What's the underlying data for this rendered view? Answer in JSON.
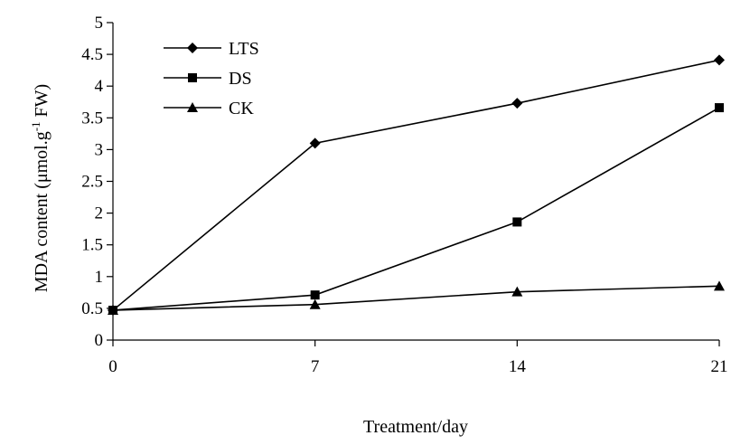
{
  "chart_data": {
    "type": "line",
    "xlabel": "Treatment/day",
    "ylabel": {
      "prefix": "MDA content (μmol.g",
      "superscript": "-1",
      "suffix": " FW)"
    },
    "x": [
      0,
      7,
      14,
      21
    ],
    "xlim": [
      0,
      21
    ],
    "ylim": [
      0,
      5
    ],
    "yticks": [
      "0",
      "0.5",
      "1",
      "1.5",
      "2",
      "2.5",
      "3",
      "3.5",
      "4",
      "4.5",
      "5"
    ],
    "xticks": [
      "0",
      "7",
      "14",
      "21"
    ],
    "legend_position": "top-left",
    "grid": false,
    "series": [
      {
        "name": "LTS",
        "marker": "diamond",
        "values": [
          0.47,
          3.1,
          3.73,
          4.41
        ]
      },
      {
        "name": "DS",
        "marker": "square",
        "values": [
          0.47,
          0.71,
          1.86,
          3.66
        ]
      },
      {
        "name": "CK",
        "marker": "triangle",
        "values": [
          0.47,
          0.56,
          0.76,
          0.85
        ]
      }
    ]
  }
}
